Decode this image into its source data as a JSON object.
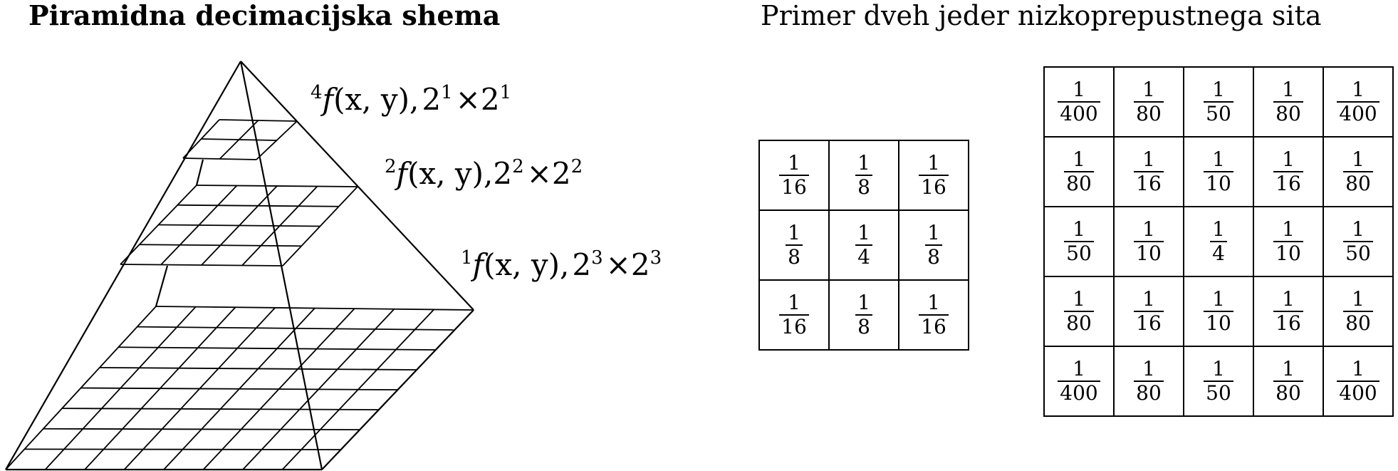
{
  "titles": {
    "left": "Piramidna decimacijska shema",
    "right": "Primer dveh jeder nizkoprepustnega sita"
  },
  "levels": [
    {
      "sup": "4",
      "func": "f",
      "args": "(x, y),",
      "base1": "2",
      "exp1": "1",
      "times": "×",
      "base2": "2",
      "exp2": "1"
    },
    {
      "sup": "2",
      "func": "f",
      "args": "(x, y),",
      "base1": "2",
      "exp1": "2",
      "times": "×",
      "base2": "2",
      "exp2": "2"
    },
    {
      "sup": "1",
      "func": "f",
      "args": "(x, y),",
      "base1": "2",
      "exp1": "3",
      "times": "×",
      "base2": "2",
      "exp2": "3"
    }
  ],
  "kernel3": [
    [
      [
        "1",
        "16"
      ],
      [
        "1",
        "8"
      ],
      [
        "1",
        "16"
      ]
    ],
    [
      [
        "1",
        "8"
      ],
      [
        "1",
        "4"
      ],
      [
        "1",
        "8"
      ]
    ],
    [
      [
        "1",
        "16"
      ],
      [
        "1",
        "8"
      ],
      [
        "1",
        "16"
      ]
    ]
  ],
  "kernel5": [
    [
      [
        "1",
        "400"
      ],
      [
        "1",
        "80"
      ],
      [
        "1",
        "50"
      ],
      [
        "1",
        "80"
      ],
      [
        "1",
        "400"
      ]
    ],
    [
      [
        "1",
        "80"
      ],
      [
        "1",
        "16"
      ],
      [
        "1",
        "10"
      ],
      [
        "1",
        "16"
      ],
      [
        "1",
        "80"
      ]
    ],
    [
      [
        "1",
        "50"
      ],
      [
        "1",
        "10"
      ],
      [
        "1",
        "4"
      ],
      [
        "1",
        "10"
      ],
      [
        "1",
        "50"
      ]
    ],
    [
      [
        "1",
        "80"
      ],
      [
        "1",
        "16"
      ],
      [
        "1",
        "10"
      ],
      [
        "1",
        "16"
      ],
      [
        "1",
        "80"
      ]
    ],
    [
      [
        "1",
        "400"
      ],
      [
        "1",
        "80"
      ],
      [
        "1",
        "50"
      ],
      [
        "1",
        "80"
      ],
      [
        "1",
        "400"
      ]
    ]
  ]
}
